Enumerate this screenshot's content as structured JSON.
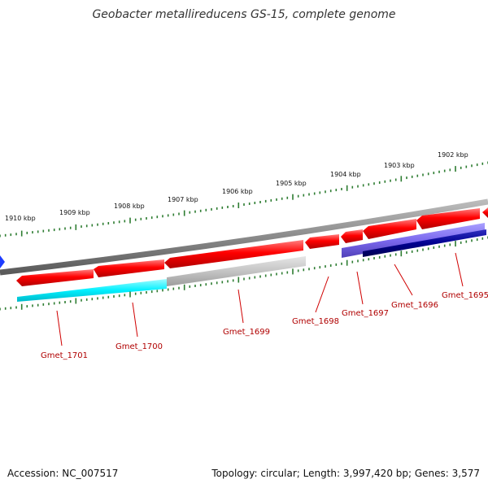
{
  "title": "Geobacter metallireducens GS-15, complete genome",
  "scale_labels": [
    "1910 kbp",
    "1909 kbp",
    "1908 kbp",
    "1907 kbp",
    "1906 kbp",
    "1905 kbp",
    "1904 kbp",
    "1903 kbp",
    "1902 kbp"
  ],
  "genes": [
    {
      "name": "Gmet_1701",
      "strand": "reverse",
      "color": "#ff0000",
      "feature_color": "#00ffff"
    },
    {
      "name": "Gmet_1700",
      "strand": "reverse",
      "color": "#ff0000",
      "feature_color": "#00ffff"
    },
    {
      "name": "Gmet_1699",
      "strand": "reverse",
      "color": "#ff0000",
      "feature_color": "#bdbdbd"
    },
    {
      "name": "Gmet_1698",
      "strand": "reverse",
      "color": "#ff0000",
      "feature_color": null
    },
    {
      "name": "Gmet_1697",
      "strand": "reverse",
      "color": "#ff0000",
      "feature_color": "#7b68ee"
    },
    {
      "name": "Gmet_1696",
      "strand": "reverse",
      "color": "#ff0000",
      "feature_color": "#00008b"
    },
    {
      "name": "Gmet_1695",
      "strand": "reverse",
      "color": "#ff0000",
      "feature_color": null
    }
  ],
  "colors": {
    "backbone": "#7a7a7a",
    "ticks": "#2e7d32",
    "gene": "#ff0000",
    "label": "#b00000",
    "marker": "#1e3cff"
  },
  "footer": {
    "accession": "Accession: NC_007517",
    "summary": "Topology: circular; Length: 3,997,420 bp; Genes: 3,577"
  }
}
